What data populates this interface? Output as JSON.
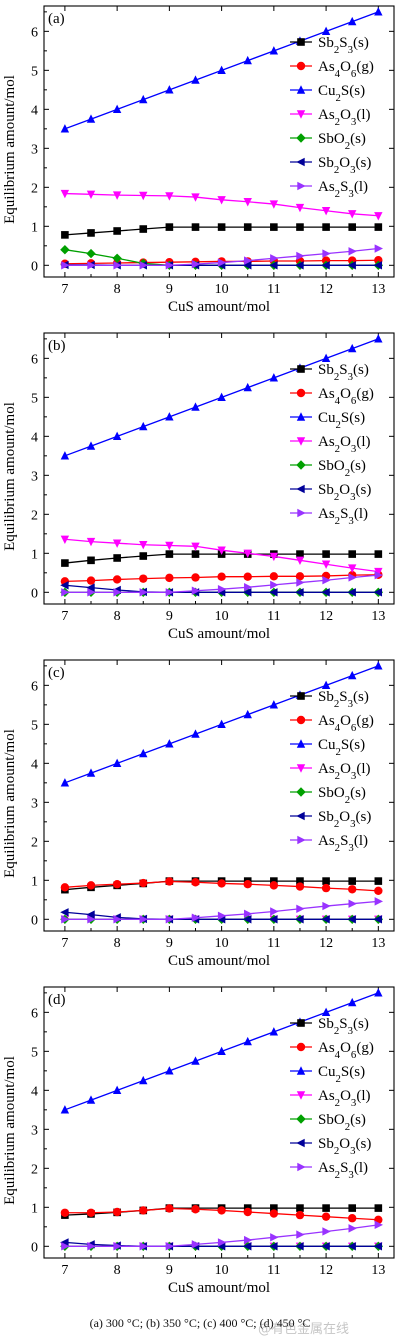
{
  "chart_data": [
    {
      "type": "line",
      "panel_label": "(a)",
      "xlabel": "CuS amount/mol",
      "ylabel": "Equilibrium amount/mol",
      "xlim": [
        6.6,
        13.3
      ],
      "ylim": [
        -0.3,
        6.65
      ],
      "xticks": [
        "7",
        "8",
        "9",
        "10",
        "11",
        "12",
        "13"
      ],
      "yticks": [
        "0",
        "1",
        "2",
        "3",
        "4",
        "5",
        "6"
      ],
      "legend": "right",
      "x": [
        7,
        7.5,
        8,
        8.5,
        9,
        9.5,
        10,
        10.5,
        11,
        11.5,
        12,
        12.5,
        13
      ],
      "series": [
        {
          "name": "Sb2S3(s)",
          "sub": [
            "2",
            "3"
          ],
          "phase": "(s)",
          "color": "#000000",
          "marker": "square",
          "values": [
            0.78,
            0.83,
            0.88,
            0.93,
            0.98,
            0.98,
            0.98,
            0.98,
            0.98,
            0.98,
            0.98,
            0.98,
            0.98
          ]
        },
        {
          "name": "As4O6(g)",
          "sub": [
            "4",
            "6"
          ],
          "phase": "(g)",
          "color": "#ff0000",
          "marker": "circle",
          "values": [
            0.04,
            0.05,
            0.06,
            0.07,
            0.08,
            0.09,
            0.1,
            0.1,
            0.11,
            0.11,
            0.12,
            0.12,
            0.13
          ]
        },
        {
          "name": "Cu2S(s)",
          "sub": [
            "2",
            ""
          ],
          "phase": "(s)",
          "color": "#0000ff",
          "marker": "triangle-up",
          "values": [
            3.5,
            3.75,
            4.0,
            4.25,
            4.5,
            4.75,
            5.0,
            5.25,
            5.5,
            5.75,
            6.0,
            6.25,
            6.5
          ]
        },
        {
          "name": "As2O3(l)",
          "sub": [
            "2",
            "3"
          ],
          "phase": "(l)",
          "color": "#ff00ff",
          "marker": "triangle-down",
          "values": [
            1.84,
            1.82,
            1.8,
            1.79,
            1.78,
            1.75,
            1.68,
            1.63,
            1.57,
            1.48,
            1.4,
            1.32,
            1.27
          ]
        },
        {
          "name": "SbO2(s)",
          "sub": [
            "",
            ""
          ],
          "sub_single": "2",
          "phase": "(s)",
          "color": "#00a000",
          "marker": "diamond",
          "values": [
            0.4,
            0.3,
            0.18,
            0.05,
            0.0,
            0.0,
            0.0,
            0.0,
            0.0,
            0.0,
            0.0,
            0.0,
            0.0
          ]
        },
        {
          "name": "Sb2O3(s)",
          "sub": [
            "2",
            "3"
          ],
          "phase": "(s)",
          "color": "#000099",
          "marker": "triangle-left",
          "values": [
            0.01,
            0.01,
            0.0,
            0.0,
            0.0,
            0.0,
            0.0,
            0.0,
            0.0,
            0.0,
            0.0,
            0.0,
            0.0
          ]
        },
        {
          "name": "As2S3(l)",
          "sub": [
            "2",
            "3"
          ],
          "phase": "(l)",
          "color": "#9933ff",
          "marker": "triangle-right",
          "values": [
            0.0,
            0.0,
            0.0,
            0.0,
            0.0,
            0.03,
            0.07,
            0.12,
            0.18,
            0.24,
            0.3,
            0.36,
            0.43
          ]
        }
      ]
    },
    {
      "type": "line",
      "panel_label": "(b)",
      "xlabel": "CuS amount/mol",
      "ylabel": "Equilibrium amount/mol",
      "xlim": [
        6.6,
        13.3
      ],
      "ylim": [
        -0.3,
        6.65
      ],
      "xticks": [
        "7",
        "8",
        "9",
        "10",
        "11",
        "12",
        "13"
      ],
      "yticks": [
        "0",
        "1",
        "2",
        "3",
        "4",
        "5",
        "6"
      ],
      "legend": "right",
      "x": [
        7,
        7.5,
        8,
        8.5,
        9,
        9.5,
        10,
        10.5,
        11,
        11.5,
        12,
        12.5,
        13
      ],
      "series": [
        {
          "name": "Sb2S3(s)",
          "color": "#000000",
          "marker": "square",
          "values": [
            0.75,
            0.82,
            0.88,
            0.93,
            0.98,
            0.98,
            0.98,
            0.98,
            0.98,
            0.98,
            0.98,
            0.98,
            0.98
          ]
        },
        {
          "name": "As4O6(g)",
          "color": "#ff0000",
          "marker": "circle",
          "values": [
            0.28,
            0.3,
            0.33,
            0.35,
            0.37,
            0.38,
            0.4,
            0.4,
            0.41,
            0.41,
            0.42,
            0.44,
            0.45
          ]
        },
        {
          "name": "Cu2S(s)",
          "color": "#0000ff",
          "marker": "triangle-up",
          "values": [
            3.5,
            3.75,
            4.0,
            4.25,
            4.5,
            4.75,
            5.0,
            5.25,
            5.5,
            5.75,
            6.0,
            6.25,
            6.5
          ]
        },
        {
          "name": "As2O3(l)",
          "color": "#ff00ff",
          "marker": "triangle-down",
          "values": [
            1.36,
            1.3,
            1.26,
            1.22,
            1.2,
            1.18,
            1.08,
            1.0,
            0.92,
            0.82,
            0.72,
            0.62,
            0.53
          ]
        },
        {
          "name": "SbO2(s)",
          "color": "#00a000",
          "marker": "diamond",
          "values": [
            0.0,
            0.0,
            0.0,
            0.0,
            0.0,
            0.0,
            0.0,
            0.0,
            0.0,
            0.0,
            0.0,
            0.0,
            0.0
          ]
        },
        {
          "name": "Sb2O3(s)",
          "color": "#000099",
          "marker": "triangle-left",
          "values": [
            0.18,
            0.12,
            0.06,
            0.01,
            0.0,
            0.0,
            0.0,
            0.0,
            0.0,
            0.0,
            0.0,
            0.0,
            0.0
          ]
        },
        {
          "name": "As2S3(l)",
          "color": "#9933ff",
          "marker": "triangle-right",
          "values": [
            0.0,
            0.0,
            0.0,
            0.0,
            0.0,
            0.04,
            0.08,
            0.13,
            0.19,
            0.25,
            0.31,
            0.38,
            0.44
          ]
        }
      ]
    },
    {
      "type": "line",
      "panel_label": "(c)",
      "xlabel": "CuS amount/mol",
      "ylabel": "Equilibrium amount/mol",
      "xlim": [
        6.6,
        13.3
      ],
      "ylim": [
        -0.3,
        6.65
      ],
      "xticks": [
        "7",
        "8",
        "9",
        "10",
        "11",
        "12",
        "13"
      ],
      "yticks": [
        "0",
        "1",
        "2",
        "3",
        "4",
        "5",
        "6"
      ],
      "legend": "right",
      "x": [
        7,
        7.5,
        8,
        8.5,
        9,
        9.5,
        10,
        10.5,
        11,
        11.5,
        12,
        12.5,
        13
      ],
      "series": [
        {
          "name": "Sb2S3(s)",
          "color": "#000000",
          "marker": "square",
          "values": [
            0.76,
            0.82,
            0.87,
            0.92,
            0.98,
            0.98,
            0.98,
            0.98,
            0.98,
            0.98,
            0.98,
            0.98,
            0.98
          ]
        },
        {
          "name": "As4O6(g)",
          "color": "#ff0000",
          "marker": "circle",
          "values": [
            0.82,
            0.87,
            0.9,
            0.93,
            0.97,
            0.95,
            0.92,
            0.9,
            0.87,
            0.84,
            0.8,
            0.77,
            0.73
          ]
        },
        {
          "name": "Cu2S(s)",
          "color": "#0000ff",
          "marker": "triangle-up",
          "values": [
            3.5,
            3.75,
            4.0,
            4.25,
            4.5,
            4.75,
            5.0,
            5.25,
            5.5,
            5.75,
            6.0,
            6.25,
            6.5
          ]
        },
        {
          "name": "As2O3(l)",
          "color": "#ff00ff",
          "marker": "triangle-down",
          "values": [
            0.0,
            0.0,
            0.0,
            0.0,
            0.0,
            0.0,
            0.0,
            0.0,
            0.0,
            0.0,
            0.0,
            0.0,
            0.0
          ]
        },
        {
          "name": "SbO2(s)",
          "color": "#00a000",
          "marker": "diamond",
          "values": [
            0.0,
            0.0,
            0.0,
            0.0,
            0.0,
            0.0,
            0.0,
            0.0,
            0.0,
            0.0,
            0.0,
            0.0,
            0.0
          ]
        },
        {
          "name": "Sb2O3(s)",
          "color": "#000099",
          "marker": "triangle-left",
          "values": [
            0.18,
            0.12,
            0.05,
            0.01,
            0.0,
            0.0,
            0.0,
            0.0,
            0.0,
            0.0,
            0.0,
            0.0,
            0.0
          ]
        },
        {
          "name": "As2S3(l)",
          "color": "#9933ff",
          "marker": "triangle-right",
          "values": [
            0.0,
            0.0,
            0.0,
            0.0,
            0.0,
            0.04,
            0.09,
            0.14,
            0.2,
            0.27,
            0.34,
            0.4,
            0.46
          ]
        }
      ]
    },
    {
      "type": "line",
      "panel_label": "(d)",
      "xlabel": "CuS amount/mol",
      "ylabel": "Equilibrium amount/mol",
      "xlim": [
        6.6,
        13.3
      ],
      "ylim": [
        -0.3,
        6.65
      ],
      "xticks": [
        "7",
        "8",
        "9",
        "10",
        "11",
        "12",
        "13"
      ],
      "yticks": [
        "0",
        "1",
        "2",
        "3",
        "4",
        "5",
        "6"
      ],
      "legend": "right",
      "x": [
        7,
        7.5,
        8,
        8.5,
        9,
        9.5,
        10,
        10.5,
        11,
        11.5,
        12,
        12.5,
        13
      ],
      "series": [
        {
          "name": "Sb2S3(s)",
          "color": "#000000",
          "marker": "square",
          "values": [
            0.8,
            0.83,
            0.87,
            0.92,
            0.98,
            0.98,
            0.98,
            0.98,
            0.98,
            0.98,
            0.98,
            0.98,
            0.98
          ]
        },
        {
          "name": "As4O6(g)",
          "color": "#ff0000",
          "marker": "circle",
          "values": [
            0.86,
            0.86,
            0.88,
            0.92,
            0.97,
            0.95,
            0.92,
            0.88,
            0.84,
            0.8,
            0.76,
            0.72,
            0.68
          ]
        },
        {
          "name": "Cu2S(s)",
          "color": "#0000ff",
          "marker": "triangle-up",
          "values": [
            3.5,
            3.75,
            4.0,
            4.25,
            4.5,
            4.75,
            5.0,
            5.25,
            5.5,
            5.75,
            6.0,
            6.25,
            6.5
          ]
        },
        {
          "name": "As2O3(l)",
          "color": "#ff00ff",
          "marker": "triangle-down",
          "values": [
            0.0,
            0.0,
            0.0,
            0.0,
            0.0,
            0.0,
            0.0,
            0.0,
            0.0,
            0.0,
            0.0,
            0.0,
            0.0
          ]
        },
        {
          "name": "SbO2(s)",
          "color": "#00a000",
          "marker": "diamond",
          "values": [
            0.0,
            0.0,
            0.0,
            0.0,
            0.0,
            0.0,
            0.0,
            0.0,
            0.0,
            0.0,
            0.0,
            0.0,
            0.0
          ]
        },
        {
          "name": "Sb2O3(s)",
          "color": "#000099",
          "marker": "triangle-left",
          "values": [
            0.1,
            0.05,
            0.02,
            0.0,
            0.0,
            0.0,
            0.0,
            0.0,
            0.0,
            0.0,
            0.0,
            0.0,
            0.0
          ]
        },
        {
          "name": "As2S3(l)",
          "color": "#9933ff",
          "marker": "triangle-right",
          "values": [
            0.0,
            0.0,
            0.0,
            0.0,
            0.0,
            0.05,
            0.1,
            0.16,
            0.23,
            0.3,
            0.38,
            0.46,
            0.55
          ]
        }
      ]
    }
  ],
  "caption": "(a) 300 °C; (b) 350 °C; (c) 400 °C; (d) 450 °C",
  "watermark": "@有色金属在线"
}
